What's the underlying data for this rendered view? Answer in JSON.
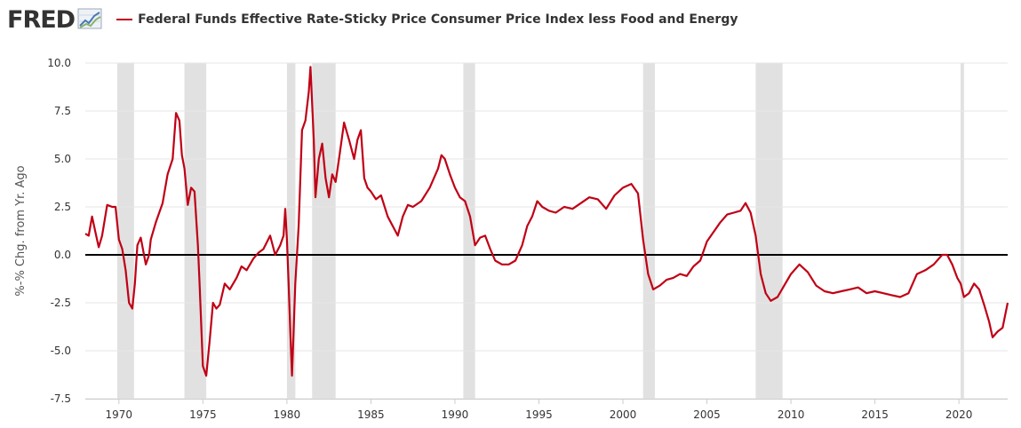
{
  "header": {
    "logo_text": "FRED",
    "logo_registered": "®",
    "icon": "trend-chart-icon"
  },
  "chart_data": {
    "type": "line",
    "title": "Federal Funds Effective Rate-Sticky Price Consumer Price Index less Food and Energy",
    "ylabel": "%-% Chg. from Yr. Ago",
    "xlabel": "",
    "xlim": [
      1968.0,
      2022.9
    ],
    "ylim": [
      -7.5,
      10.0
    ],
    "y_ticks": [
      10.0,
      7.5,
      5.0,
      2.5,
      0.0,
      -2.5,
      -5.0,
      -7.5
    ],
    "y_tick_labels": [
      "10.0",
      "7.5",
      "5.0",
      "2.5",
      "0.0",
      "-2.5",
      "-5.0",
      "-7.5"
    ],
    "x_ticks": [
      1970,
      1975,
      1980,
      1985,
      1990,
      1995,
      2000,
      2005,
      2010,
      2015,
      2020
    ],
    "x_tick_labels": [
      "1970",
      "1975",
      "1980",
      "1985",
      "1990",
      "1995",
      "2000",
      "2005",
      "2010",
      "2015",
      "2020"
    ],
    "grid": "horizontal",
    "zero_line": true,
    "colors": {
      "series": "#c00015",
      "recession": "#e1e1e1",
      "grid": "#e6e6e6",
      "zero": "#000000"
    },
    "recessions": [
      [
        1969.9,
        1970.9
      ],
      [
        1973.9,
        1975.2
      ],
      [
        1980.0,
        1980.5
      ],
      [
        1981.5,
        1982.9
      ],
      [
        1990.5,
        1991.2
      ],
      [
        2001.2,
        2001.9
      ],
      [
        2007.9,
        2009.5
      ],
      [
        2020.1,
        2020.3
      ]
    ],
    "series": [
      {
        "name": "Federal Funds Effective Rate-Sticky Price Consumer Price Index less Food and Energy",
        "x": [
          1968.0,
          1968.2,
          1968.4,
          1968.6,
          1968.8,
          1969.0,
          1969.3,
          1969.6,
          1969.8,
          1970.0,
          1970.2,
          1970.4,
          1970.6,
          1970.8,
          1970.95,
          1971.1,
          1971.3,
          1971.6,
          1971.8,
          1971.9,
          1972.2,
          1972.6,
          1972.9,
          1973.2,
          1973.4,
          1973.6,
          1973.75,
          1973.9,
          1974.1,
          1974.3,
          1974.5,
          1974.7,
          1974.8,
          1975.0,
          1975.2,
          1975.4,
          1975.6,
          1975.8,
          1976.0,
          1976.3,
          1976.6,
          1977.0,
          1977.3,
          1977.6,
          1978.0,
          1978.3,
          1978.6,
          1979.0,
          1979.3,
          1979.6,
          1979.8,
          1979.9,
          1980.0,
          1980.1,
          1980.2,
          1980.3,
          1980.4,
          1980.5,
          1980.7,
          1980.9,
          1981.1,
          1981.3,
          1981.4,
          1981.6,
          1981.7,
          1981.9,
          1982.1,
          1982.3,
          1982.5,
          1982.7,
          1982.9,
          1983.1,
          1983.4,
          1983.7,
          1984.0,
          1984.2,
          1984.4,
          1984.6,
          1984.8,
          1985.0,
          1985.3,
          1985.6,
          1986.0,
          1986.3,
          1986.6,
          1986.9,
          1987.2,
          1987.5,
          1988.0,
          1988.5,
          1989.0,
          1989.2,
          1989.4,
          1989.7,
          1990.0,
          1990.3,
          1990.6,
          1990.9,
          1991.2,
          1991.5,
          1991.8,
          1992.1,
          1992.4,
          1992.8,
          1993.2,
          1993.6,
          1994.0,
          1994.3,
          1994.6,
          1994.9,
          1995.2,
          1995.6,
          1996.0,
          1996.5,
          1997.0,
          1997.5,
          1998.0,
          1998.5,
          1999.0,
          1999.5,
          2000.0,
          2000.5,
          2000.9,
          2001.2,
          2001.5,
          2001.8,
          2002.2,
          2002.6,
          2003.0,
          2003.4,
          2003.8,
          2004.2,
          2004.6,
          2005.0,
          2005.4,
          2005.8,
          2006.2,
          2006.6,
          2007.0,
          2007.3,
          2007.6,
          2007.9,
          2008.2,
          2008.5,
          2008.8,
          2009.2,
          2009.6,
          2010.0,
          2010.5,
          2011.0,
          2011.5,
          2012.0,
          2012.5,
          2013.0,
          2013.5,
          2014.0,
          2014.5,
          2015.0,
          2015.5,
          2016.0,
          2016.5,
          2017.0,
          2017.5,
          2018.0,
          2018.5,
          2019.0,
          2019.3,
          2019.6,
          2019.9,
          2020.1,
          2020.3,
          2020.6,
          2020.9,
          2021.2,
          2021.5,
          2021.8,
          2022.0,
          2022.3,
          2022.6,
          2022.9
        ],
        "values": [
          1.1,
          1.0,
          2.0,
          1.2,
          0.4,
          1.0,
          2.6,
          2.5,
          2.5,
          0.8,
          0.3,
          -0.8,
          -2.5,
          -2.8,
          -1.5,
          0.5,
          0.9,
          -0.5,
          0.0,
          0.8,
          1.7,
          2.7,
          4.2,
          5.0,
          7.4,
          7.0,
          5.2,
          4.5,
          2.6,
          3.5,
          3.3,
          0.5,
          -1.5,
          -5.8,
          -6.3,
          -4.5,
          -2.5,
          -2.8,
          -2.6,
          -1.5,
          -1.8,
          -1.2,
          -0.6,
          -0.8,
          -0.2,
          0.1,
          0.3,
          1.0,
          0.0,
          0.5,
          1.0,
          2.4,
          0.8,
          -1.5,
          -4.0,
          -6.3,
          -4.0,
          -1.5,
          1.5,
          6.5,
          7.0,
          8.5,
          9.8,
          6.0,
          3.0,
          5.0,
          5.8,
          4.0,
          3.0,
          4.2,
          3.8,
          5.0,
          6.9,
          6.0,
          5.0,
          6.0,
          6.5,
          4.0,
          3.5,
          3.3,
          2.9,
          3.1,
          2.0,
          1.5,
          1.0,
          2.0,
          2.6,
          2.5,
          2.8,
          3.5,
          4.5,
          5.2,
          5.0,
          4.2,
          3.5,
          3.0,
          2.8,
          2.0,
          0.5,
          0.9,
          1.0,
          0.3,
          -0.3,
          -0.5,
          -0.5,
          -0.3,
          0.5,
          1.5,
          2.0,
          2.8,
          2.5,
          2.3,
          2.2,
          2.5,
          2.4,
          2.7,
          3.0,
          2.9,
          2.4,
          3.1,
          3.5,
          3.7,
          3.2,
          0.8,
          -1.0,
          -1.8,
          -1.6,
          -1.3,
          -1.2,
          -1.0,
          -1.1,
          -0.6,
          -0.3,
          0.7,
          1.2,
          1.7,
          2.1,
          2.2,
          2.3,
          2.7,
          2.2,
          1.0,
          -1.0,
          -2.0,
          -2.4,
          -2.2,
          -1.6,
          -1.0,
          -0.5,
          -0.9,
          -1.6,
          -1.9,
          -2.0,
          -1.9,
          -1.8,
          -1.7,
          -2.0,
          -1.9,
          -2.0,
          -2.1,
          -2.2,
          -2.0,
          -1.0,
          -0.8,
          -0.5,
          0.0,
          0.0,
          -0.5,
          -1.2,
          -1.5,
          -2.2,
          -2.0,
          -1.5,
          -1.8,
          -2.6,
          -3.5,
          -4.3,
          -4.0,
          -3.8,
          -2.5
        ]
      }
    ]
  }
}
